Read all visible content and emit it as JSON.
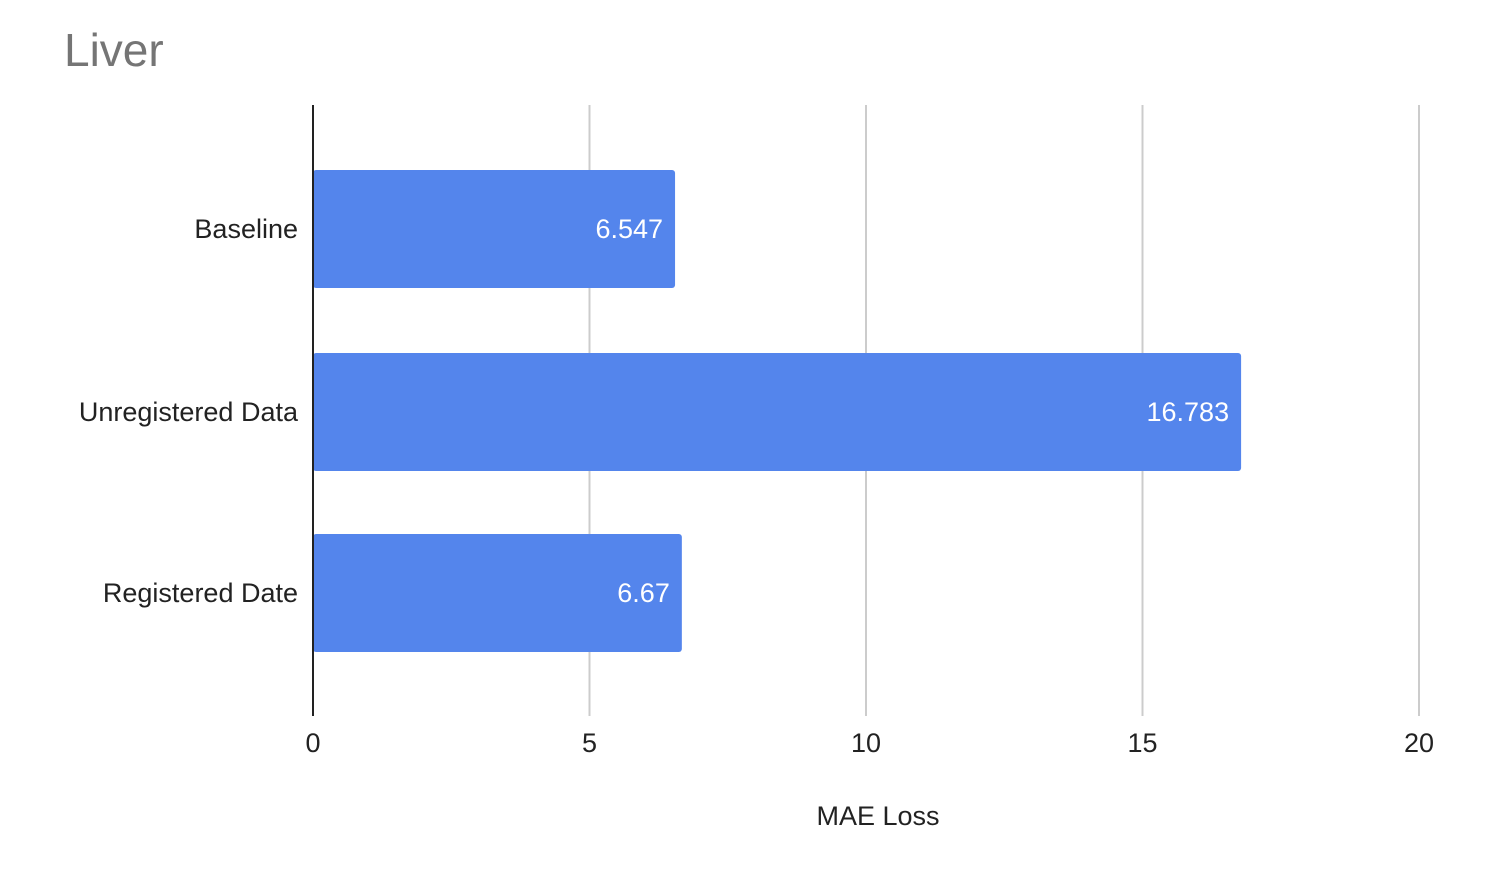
{
  "chart_data": {
    "type": "bar",
    "orientation": "horizontal",
    "title": "Liver",
    "xlabel": "MAE Loss",
    "ylabel": "",
    "categories": [
      "Baseline",
      "Unregistered Data",
      "Registered Date"
    ],
    "values": [
      6.547,
      16.783,
      6.67
    ],
    "data_labels": [
      "6.547",
      "16.783",
      "6.67"
    ],
    "xlim": [
      0,
      20
    ],
    "x_ticks": [
      "0",
      "5",
      "10",
      "15",
      "20"
    ],
    "grid": "vertical",
    "legend": "none",
    "colors": {
      "bar": "#5485ec",
      "grid": "#cccccc",
      "axis": "#222222",
      "title": "#757575",
      "label": "#222222",
      "data_label": "#ffffff"
    }
  }
}
